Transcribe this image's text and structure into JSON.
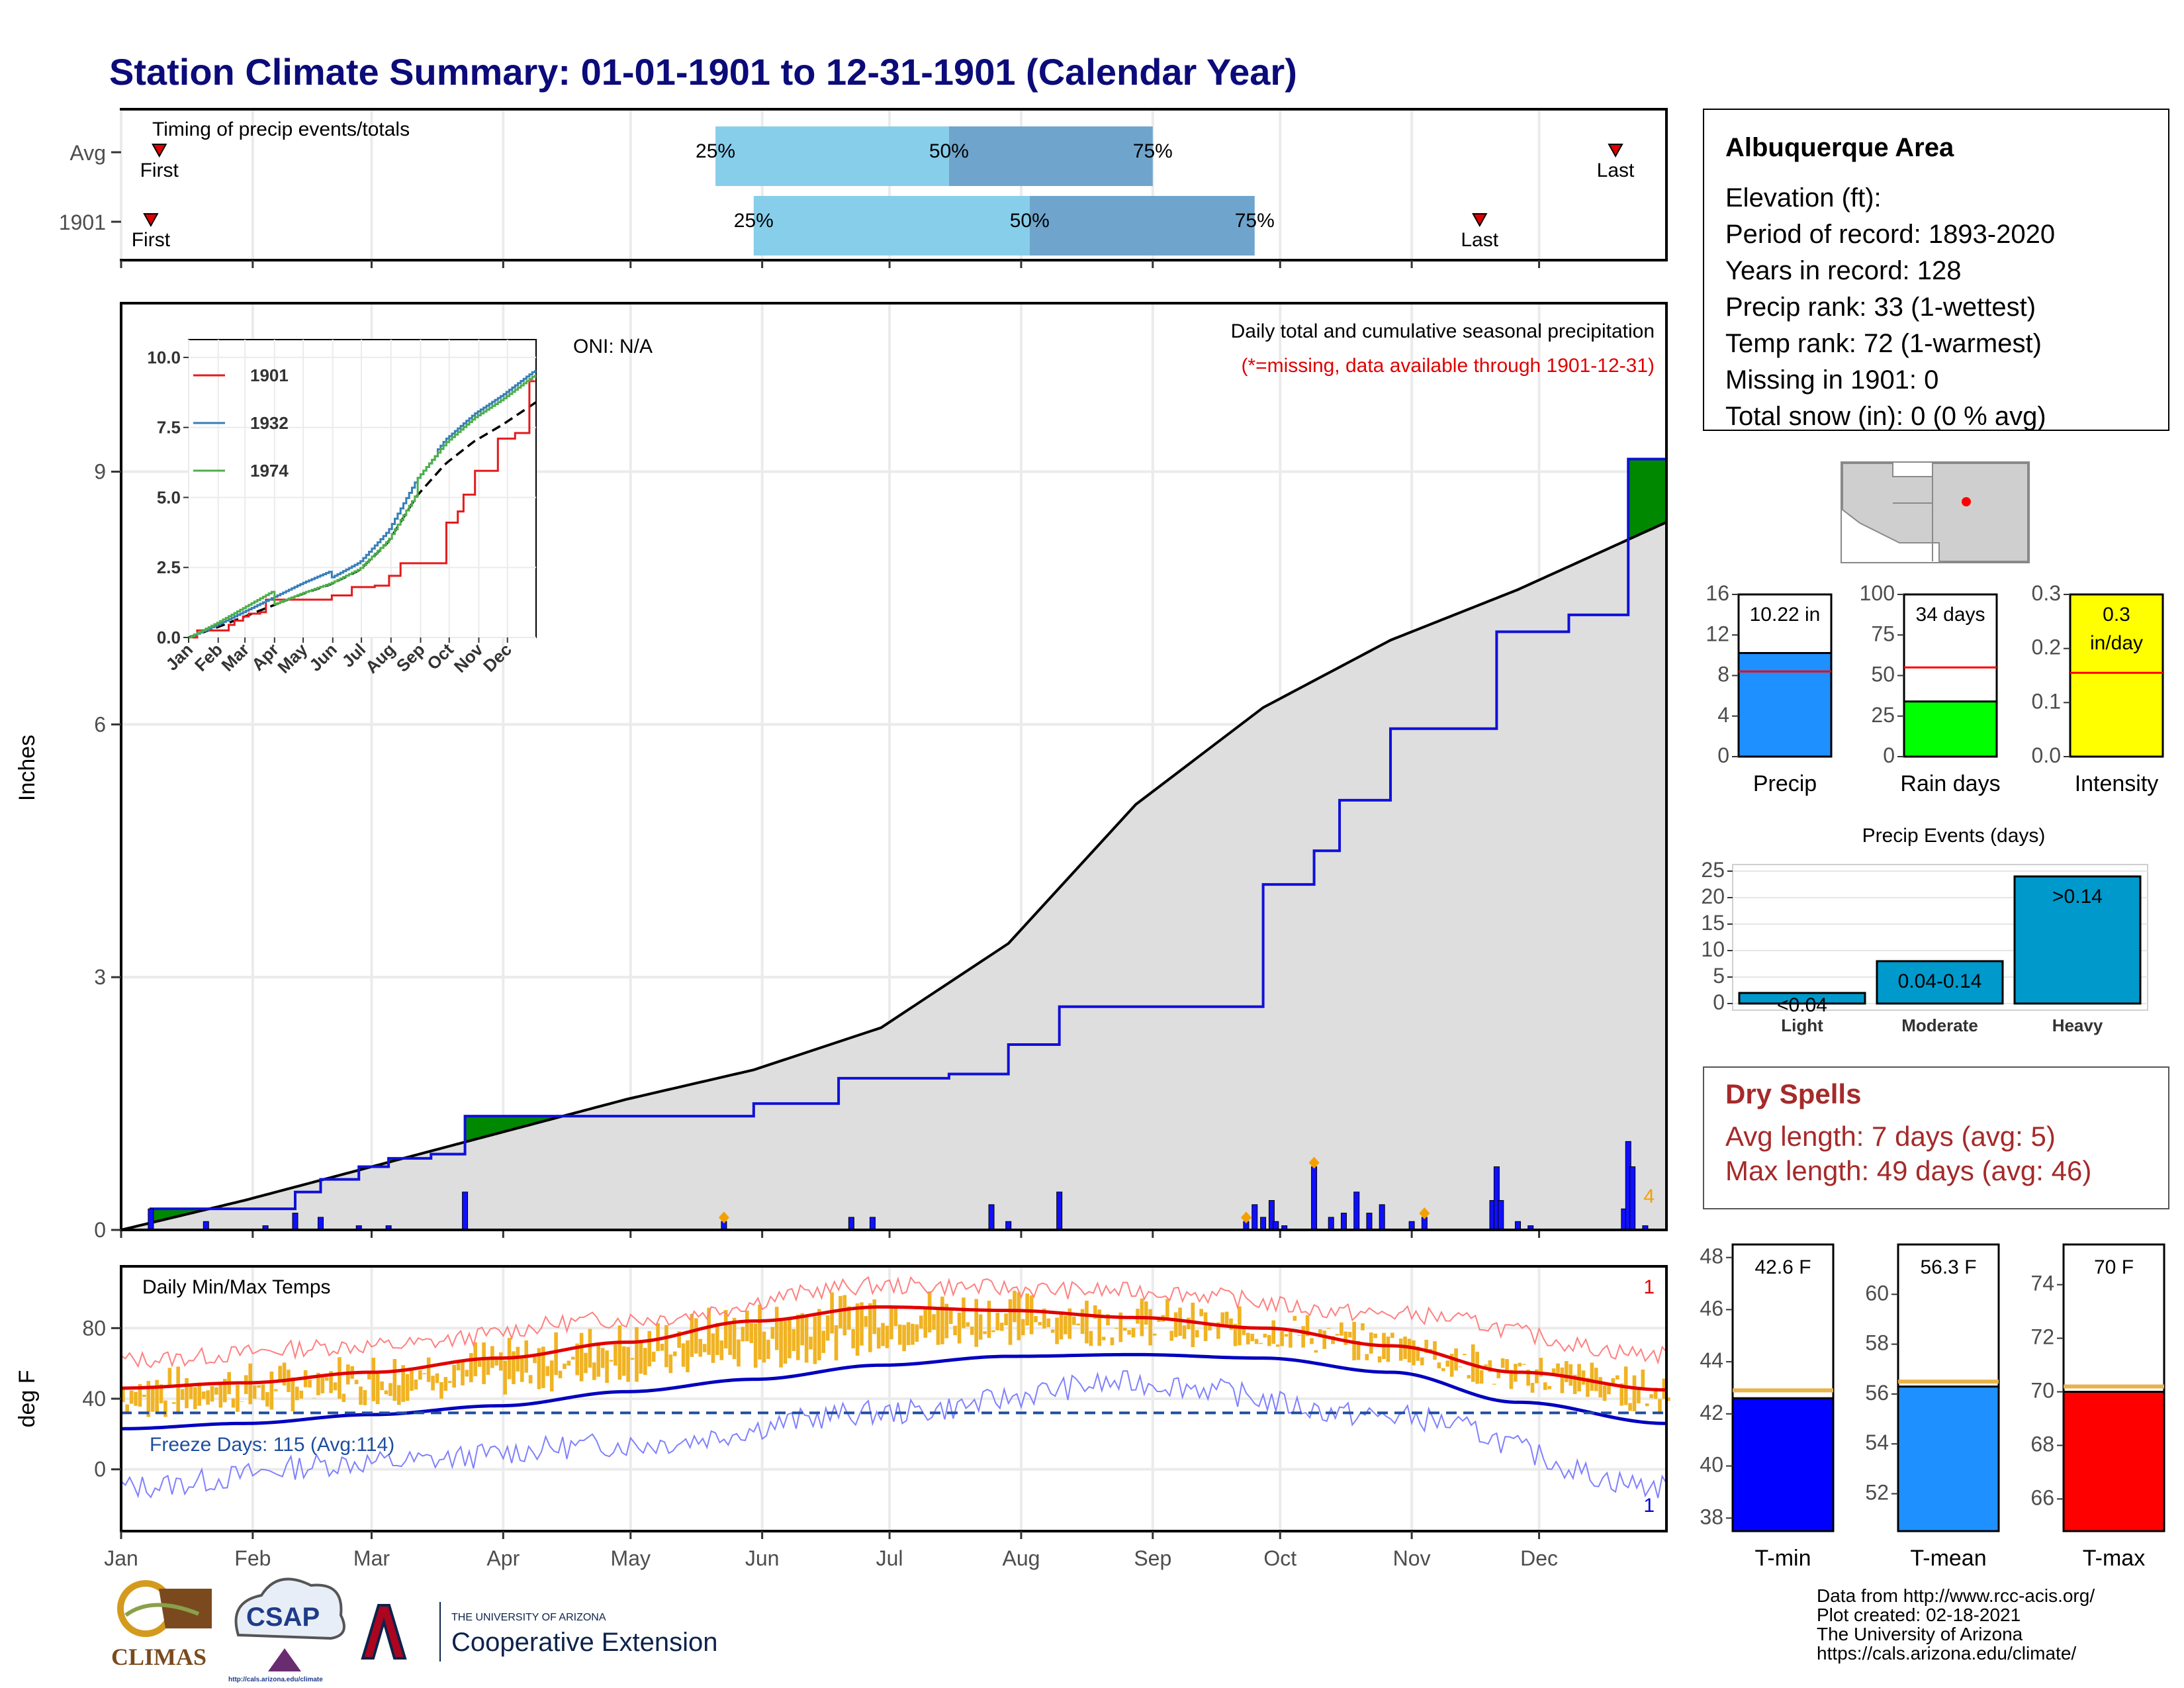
{
  "title": "Station Climate Summary: 01-01-1901 to 12-31-1901 (Calendar Year)",
  "timing": {
    "panel_title": "Timing of precip events/totals",
    "rows": [
      {
        "label": "Avg",
        "first_day": 10,
        "p25_day": 141,
        "p50_day": 196,
        "p75_day": 244,
        "last_day": 353,
        "first_label": "First",
        "last_label": "Last",
        "p25_label": "25%",
        "p50_label": "50%",
        "p75_label": "75%"
      },
      {
        "label": "1901",
        "first_day": 8,
        "p25_day": 150,
        "p50_day": 215,
        "p75_day": 268,
        "last_day": 321,
        "first_label": "First",
        "last_label": "Last",
        "p25_label": "25%",
        "p50_label": "50%",
        "p75_label": "75%"
      }
    ]
  },
  "precip_panel": {
    "ylabel": "Inches",
    "yticks": [
      0,
      3,
      6,
      9
    ],
    "oni": "ONI: N/A",
    "header": "Daily total and cumulative seasonal precipitation",
    "subheader": "(*=missing, data available through 1901-12-31)",
    "corner_count": "4"
  },
  "inset": {
    "yticks": [
      "0.0",
      "2.5",
      "5.0",
      "7.5",
      "10.0"
    ],
    "months": [
      "Jan",
      "Feb",
      "Mar",
      "Apr",
      "May",
      "Jun",
      "Jul",
      "Aug",
      "Sep",
      "Oct",
      "Nov",
      "Dec"
    ],
    "legend": [
      {
        "name": "1901",
        "color": "#e41a1c"
      },
      {
        "name": "1932",
        "color": "#377eb8"
      },
      {
        "name": "1974",
        "color": "#4daf4a"
      }
    ]
  },
  "temp_panel": {
    "ylabel": "deg F",
    "title": "Daily Min/Max Temps",
    "yticks": [
      0,
      40,
      80
    ],
    "freeze_label": "Freeze Days: 115 (Avg:114)",
    "top_count": "1",
    "bottom_count": "1"
  },
  "months": [
    "Jan",
    "Feb",
    "Mar",
    "Apr",
    "May",
    "Jun",
    "Jul",
    "Aug",
    "Sep",
    "Oct",
    "Nov",
    "Dec"
  ],
  "info_box": {
    "name": "Albuquerque Area",
    "lines": [
      "Elevation (ft):",
      "Period of record: 1893-2020",
      "Years in record: 128",
      "Precip rank: 33 (1-wettest)",
      "Temp rank: 72 (1-warmest)",
      "Missing in 1901: 0",
      "Total snow (in): 0 (0 % avg)"
    ]
  },
  "summary_bars": [
    {
      "label": "Precip",
      "value_text": "10.22 in",
      "value": 10.22,
      "avg": 8.4,
      "max": 16,
      "ticks": [
        "0",
        "4",
        "8",
        "12",
        "16"
      ],
      "color": "#1e90ff"
    },
    {
      "label": "Rain days",
      "value_text": "34 days",
      "value": 34,
      "avg": 55,
      "max": 100,
      "ticks": [
        "0",
        "25",
        "50",
        "75",
        "100"
      ],
      "color": "#00ff00"
    },
    {
      "label": "Intensity",
      "value_text": "0.3 in/day",
      "value": 0.3,
      "avg": 0.155,
      "max": 0.3,
      "ticks": [
        "0.0",
        "0.1",
        "0.2",
        "0.3"
      ],
      "color": "#ffff00"
    }
  ],
  "precip_events": {
    "title": "Precip Events (days)",
    "yticks": [
      "0",
      "5",
      "10",
      "15",
      "20",
      "25"
    ],
    "categories": [
      "Light",
      "Moderate",
      "Heavy"
    ],
    "values": [
      2,
      8,
      24
    ],
    "bar_labels": [
      "<0.04",
      "0.04-0.14",
      ">0.14"
    ],
    "color": "#0099cc"
  },
  "dry_spells": {
    "title": "Dry Spells",
    "lines": [
      "Avg length: 7 days (avg: 5)",
      "Max length: 49 days (avg: 46)"
    ]
  },
  "temp_bars": [
    {
      "label": "T-min",
      "value_text": "42.6 F",
      "value": 42.6,
      "avg": 42.9,
      "min": 37.5,
      "max": 48.5,
      "ticks": [
        "38",
        "40",
        "42",
        "44",
        "46",
        "48"
      ],
      "color": "#0000ff"
    },
    {
      "label": "T-mean",
      "value_text": "56.3 F",
      "value": 56.3,
      "avg": 56.5,
      "min": 50.5,
      "max": 62,
      "ticks": [
        "52",
        "54",
        "56",
        "58",
        "60"
      ],
      "color": "#1e90ff"
    },
    {
      "label": "T-max",
      "value_text": "70 F",
      "value": 70,
      "avg": 70.2,
      "min": 64.8,
      "max": 75.5,
      "ticks": [
        "66",
        "68",
        "70",
        "72",
        "74"
      ],
      "color": "#ff0000"
    }
  ],
  "footer": [
    "Data from http://www.rcc-acis.org/",
    "Plot created: 02-18-2021",
    "The University of Arizona",
    "https://cals.arizona.edu/climate/"
  ],
  "logos": {
    "climas": "CLIMAS",
    "csap": "CSAP",
    "csap_url": "http://cals.arizona.edu/climate",
    "ua_small": "THE UNIVERSITY OF ARIZONA",
    "ua_big": "Cooperative Extension"
  },
  "chart_data": [
    {
      "type": "area",
      "title": "Daily total and cumulative seasonal precipitation",
      "ylabel": "Inches",
      "ylim": [
        0,
        11
      ],
      "x_unit": "day of year",
      "cumulative_1901": [
        [
          1,
          0
        ],
        [
          8,
          0.25
        ],
        [
          35,
          0.25
        ],
        [
          42,
          0.45
        ],
        [
          48,
          0.6
        ],
        [
          57,
          0.75
        ],
        [
          64,
          0.85
        ],
        [
          74,
          0.9
        ],
        [
          82,
          1.35
        ],
        [
          143,
          1.35
        ],
        [
          150,
          1.5
        ],
        [
          170,
          1.8
        ],
        [
          196,
          1.85
        ],
        [
          210,
          2.2
        ],
        [
          222,
          2.65
        ],
        [
          258,
          2.65
        ],
        [
          270,
          4.1
        ],
        [
          282,
          4.5
        ],
        [
          288,
          5.1
        ],
        [
          300,
          5.95
        ],
        [
          325,
          7.1
        ],
        [
          342,
          7.3
        ],
        [
          356,
          9.15
        ],
        [
          371,
          9.15
        ],
        [
          379,
          9.3
        ],
        [
          388,
          10.22
        ],
        [
          365,
          10.22
        ]
      ],
      "cumulative_avg": [
        [
          1,
          0
        ],
        [
          30,
          0.35
        ],
        [
          60,
          0.75
        ],
        [
          90,
          1.15
        ],
        [
          120,
          1.55
        ],
        [
          150,
          1.9
        ],
        [
          180,
          2.4
        ],
        [
          210,
          3.4
        ],
        [
          240,
          5.05
        ],
        [
          270,
          6.2
        ],
        [
          300,
          7.0
        ],
        [
          330,
          7.6
        ],
        [
          365,
          8.4
        ]
      ],
      "daily_precip": [
        [
          8,
          0.25
        ],
        [
          21,
          0.1
        ],
        [
          35,
          0.05
        ],
        [
          42,
          0.2
        ],
        [
          48,
          0.15
        ],
        [
          57,
          0.05
        ],
        [
          64,
          0.05
        ],
        [
          82,
          0.45
        ],
        [
          143,
          0.1
        ],
        [
          173,
          0.15
        ],
        [
          178,
          0.15
        ],
        [
          206,
          0.3
        ],
        [
          210,
          0.1
        ],
        [
          222,
          0.45
        ],
        [
          266,
          0.1
        ],
        [
          268,
          0.3
        ],
        [
          270,
          0.15
        ],
        [
          272,
          0.35
        ],
        [
          273,
          0.1
        ],
        [
          275,
          0.05
        ],
        [
          282,
          0.75
        ],
        [
          286,
          0.15
        ],
        [
          289,
          0.2
        ],
        [
          292,
          0.45
        ],
        [
          295,
          0.2
        ],
        [
          298,
          0.3
        ],
        [
          305,
          0.1
        ],
        [
          308,
          0.15
        ],
        [
          324,
          0.35
        ],
        [
          325,
          0.75
        ],
        [
          326,
          0.35
        ],
        [
          330,
          0.1
        ],
        [
          333,
          0.05
        ],
        [
          355,
          0.25
        ],
        [
          356,
          1.05
        ],
        [
          357,
          0.75
        ],
        [
          360,
          0.05
        ]
      ],
      "record_markers_days": [
        142,
        252,
        280,
        312
      ]
    },
    {
      "type": "line",
      "title": "Daily Min/Max Temps",
      "ylabel": "deg F",
      "ylim": [
        -35,
        115
      ],
      "series": [
        {
          "name": "normal max",
          "x": [
            1,
            30,
            60,
            90,
            120,
            150,
            180,
            210,
            240,
            270,
            300,
            330,
            365
          ],
          "values": [
            46,
            49,
            55,
            63,
            72,
            84,
            92,
            90,
            86,
            80,
            70,
            55,
            45
          ]
        },
        {
          "name": "normal min",
          "x": [
            1,
            30,
            60,
            90,
            120,
            150,
            180,
            210,
            240,
            270,
            300,
            330,
            365
          ],
          "values": [
            23,
            26,
            31,
            36,
            44,
            51,
            59,
            64,
            65,
            63,
            55,
            38,
            26
          ]
        },
        {
          "name": "record max",
          "x": [
            1,
            60,
            120,
            180,
            240,
            300,
            365
          ],
          "values": [
            62,
            70,
            85,
            104,
            101,
            88,
            65
          ]
        },
        {
          "name": "record min",
          "x": [
            1,
            60,
            120,
            180,
            240,
            300,
            365
          ],
          "values": [
            -10,
            4,
            14,
            32,
            49,
            30,
            -10
          ]
        }
      ],
      "freeze_threshold": 32
    }
  ]
}
